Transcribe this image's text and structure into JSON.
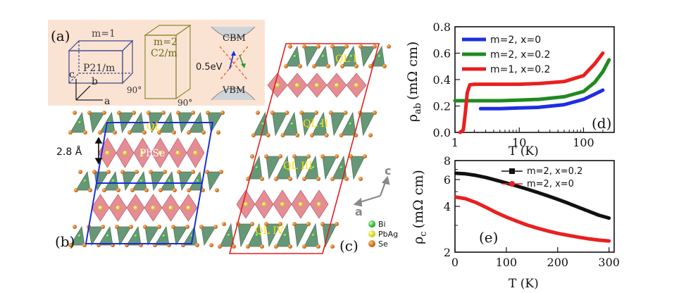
{
  "panel_labels": {
    "a": "(a)",
    "b": "(b)",
    "c": "(c)",
    "d": "(d)",
    "e": "(e)"
  },
  "panel_a": {
    "cell1_m": "m=1",
    "cell1_group": "P21/m",
    "cell1_angle": "90°",
    "cell2_m": "m=2",
    "cell2_group": "C2/m",
    "cell2_angle": "90°",
    "axis_c": "c",
    "axis_b": "b",
    "axis_a": "a",
    "cbm": "CBM",
    "vbm": "VBM",
    "gap": "0.5eV"
  },
  "panel_b": {
    "ql": "QL",
    "pbse": "PbSe",
    "spacing": "2.8 Å"
  },
  "panel_c": {
    "ql1": "QL I",
    "ql2": "QL II",
    "ql3": "QL III",
    "ql4": "QL IV",
    "axis_c": "c",
    "axis_a": "a"
  },
  "legend_atoms": [
    {
      "label": "Bi",
      "color": "#2fbf2f"
    },
    {
      "label": "PbAg",
      "color": "#e8e800"
    },
    {
      "label": "Se",
      "color": "#e07a10"
    }
  ],
  "colors": {
    "ql_fill": "#5b8f6c",
    "pbse_fill": "#e07a82",
    "cell_blue": "#1a2fd6",
    "cell_red": "#e02020",
    "panel_a_bg": "#fbe3d4"
  },
  "chart_data": [
    {
      "type": "line",
      "panel": "(d)",
      "xlabel": "T (K)",
      "ylabel": "ρab (mΩ cm)",
      "ylabel_main": "ρ",
      "ylabel_sub": "ab",
      "ylabel_units": "(mΩ cm)",
      "xscale": "log",
      "xlim": [
        1,
        300
      ],
      "ylim": [
        0.0,
        0.8
      ],
      "xticks": [
        {
          "value": 1,
          "label": "1"
        },
        {
          "value": 10,
          "label": "10"
        },
        {
          "value": 100,
          "label": "100"
        }
      ],
      "yticks": [
        {
          "value": 0.0,
          "label": "0.0"
        },
        {
          "value": 0.2,
          "label": "0.2"
        },
        {
          "value": 0.4,
          "label": "0.4"
        },
        {
          "value": 0.6,
          "label": "0.6"
        },
        {
          "value": 0.8,
          "label": "0.8"
        }
      ],
      "legend_position": "top-left",
      "series": [
        {
          "name": "m=2, x=0",
          "color": "#1e2fe0",
          "x": [
            2.5,
            5,
            10,
            20,
            50,
            100,
            150,
            200
          ],
          "y": [
            0.18,
            0.18,
            0.185,
            0.19,
            0.21,
            0.25,
            0.29,
            0.32
          ]
        },
        {
          "name": "m=2, x=0.2",
          "color": "#1f8a1f",
          "x": [
            1.0,
            2,
            5,
            10,
            20,
            50,
            100,
            150,
            200,
            250
          ],
          "y": [
            0.24,
            0.24,
            0.24,
            0.245,
            0.25,
            0.27,
            0.31,
            0.38,
            0.46,
            0.55
          ]
        },
        {
          "name": "m=1, x=0.2",
          "color": "#e82020",
          "x": [
            1.2,
            1.35,
            1.45,
            1.55,
            1.7,
            2,
            5,
            10,
            20,
            50,
            100,
            150,
            200
          ],
          "y": [
            0.0,
            0.02,
            0.15,
            0.3,
            0.36,
            0.365,
            0.365,
            0.365,
            0.37,
            0.385,
            0.43,
            0.52,
            0.6
          ]
        }
      ]
    },
    {
      "type": "line",
      "panel": "(e)",
      "xlabel": "T (K)",
      "ylabel": "ρc (mΩ cm)",
      "ylabel_main": "ρ",
      "ylabel_sub": "c",
      "ylabel_units": "(mΩ cm)",
      "yscale": "log",
      "xlim": [
        0,
        310
      ],
      "ylim": [
        2,
        8
      ],
      "xticks": [
        {
          "value": 0,
          "label": "0"
        },
        {
          "value": 100,
          "label": "100"
        },
        {
          "value": 200,
          "label": "200"
        },
        {
          "value": 300,
          "label": "300"
        }
      ],
      "yticks": [
        {
          "value": 2,
          "label": "2"
        },
        {
          "value": 4,
          "label": "4"
        },
        {
          "value": 6,
          "label": "6"
        },
        {
          "value": 8,
          "label": "8"
        }
      ],
      "legend_position": "top-right",
      "series": [
        {
          "name": "m=2, x=0.2",
          "color": "#111111",
          "marker": "square",
          "x": [
            2,
            20,
            40,
            60,
            80,
            100,
            120,
            140,
            160,
            180,
            200,
            220,
            240,
            260,
            280,
            300
          ],
          "y": [
            6.6,
            6.55,
            6.4,
            6.2,
            5.95,
            5.7,
            5.45,
            5.2,
            4.95,
            4.7,
            4.45,
            4.2,
            3.95,
            3.72,
            3.5,
            3.35
          ]
        },
        {
          "name": "m=2, x=0",
          "color": "#e82020",
          "marker": "circle",
          "x": [
            2,
            20,
            40,
            60,
            80,
            100,
            120,
            140,
            160,
            180,
            200,
            220,
            240,
            260,
            280,
            300
          ],
          "y": [
            4.6,
            4.5,
            4.25,
            3.95,
            3.65,
            3.4,
            3.2,
            3.02,
            2.88,
            2.76,
            2.66,
            2.58,
            2.51,
            2.45,
            2.4,
            2.37
          ]
        }
      ]
    }
  ]
}
